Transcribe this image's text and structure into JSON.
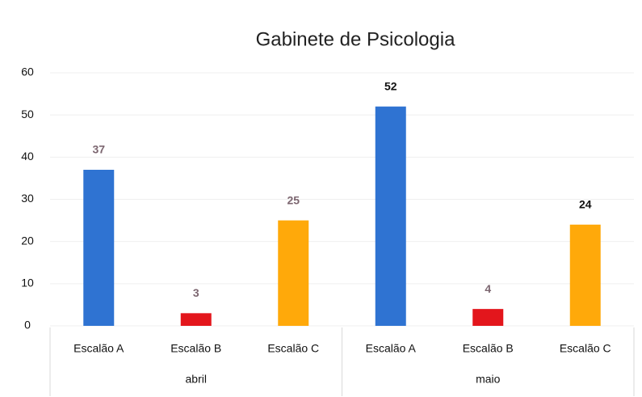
{
  "chart_data": {
    "type": "bar",
    "title": "Gabinete de Psicologia",
    "groups": [
      "abril",
      "maio"
    ],
    "categories": [
      "Escalão A",
      "Escalão B",
      "Escalão C",
      "Escalão A",
      "Escalão B",
      "Escalão C"
    ],
    "values": [
      37,
      3,
      25,
      52,
      4,
      24
    ],
    "colors": [
      "#2f73d2",
      "#e3161c",
      "#ffa90a",
      "#2f73d2",
      "#e3161c",
      "#ffa90a"
    ],
    "label_colors": [
      "#7c6670",
      "#7c6670",
      "#7c6670",
      "#111111",
      "#7c6670",
      "#111111"
    ],
    "ylim": [
      0,
      60
    ],
    "yticks": [
      0,
      10,
      20,
      30,
      40,
      50,
      60
    ],
    "grid": true
  }
}
